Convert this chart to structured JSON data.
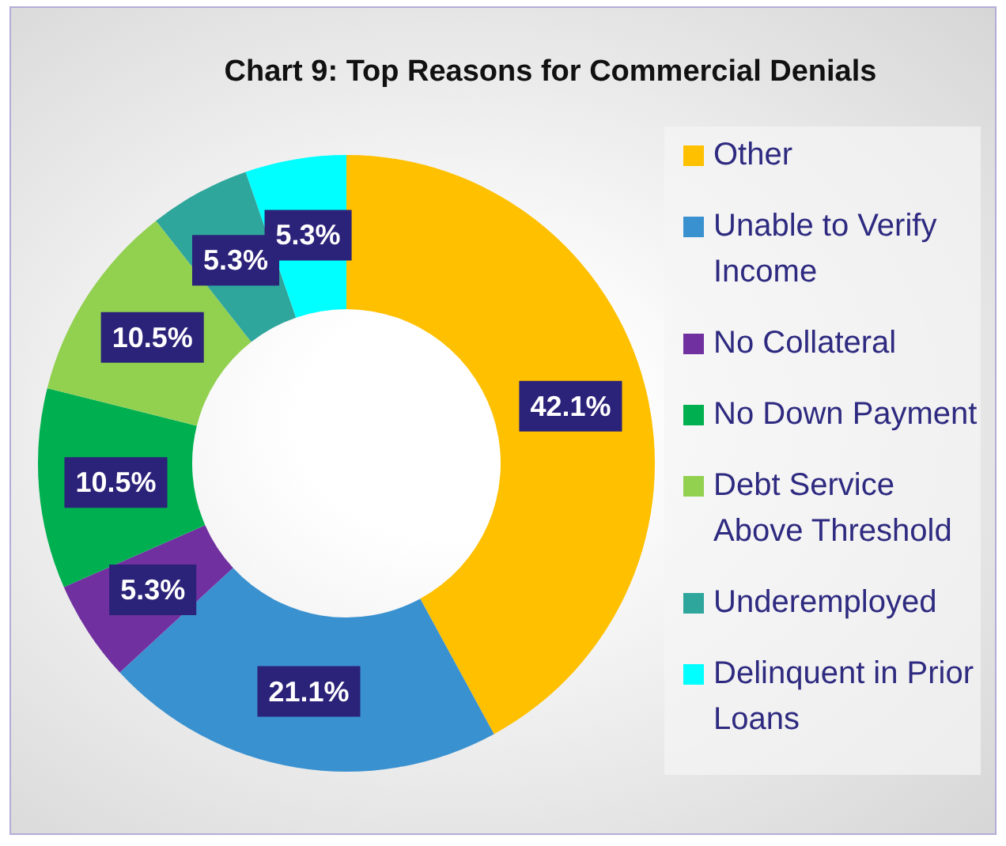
{
  "chart_data": {
    "type": "donut",
    "title": "Chart 9: Top Reasons for Commercial Denials",
    "categories": [
      "Other",
      "Unable to Verify Income",
      "No Collateral",
      "No Down Payment",
      "Debt Service Above Threshold",
      "Underemployed",
      "Delinquent in Prior Loans"
    ],
    "values": [
      42.1,
      21.1,
      5.3,
      10.5,
      10.5,
      5.3,
      5.3
    ],
    "value_labels": [
      "42.1%",
      "21.1%",
      "5.3%",
      "10.5%",
      "10.5%",
      "5.3%",
      "5.3%"
    ],
    "colors": [
      "#ffc000",
      "#3a91d0",
      "#7030a0",
      "#00b050",
      "#92d050",
      "#2fa69c",
      "#00ffff"
    ],
    "legend": "right"
  }
}
